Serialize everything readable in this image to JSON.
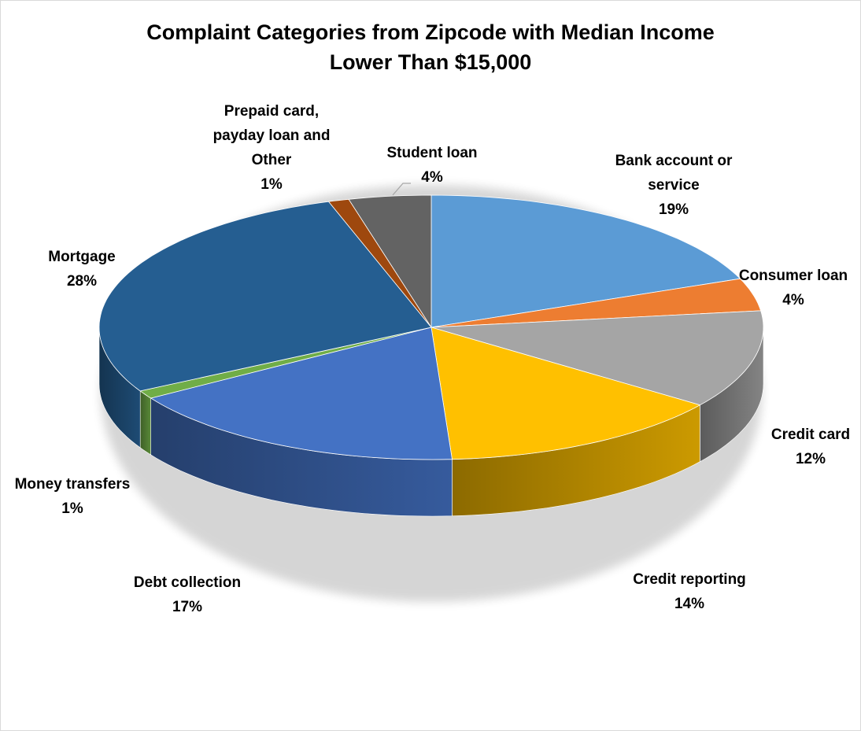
{
  "chart_data": {
    "type": "pie",
    "variant": "3d",
    "title_lines": [
      "Complaint Categories from Zipcode with Median Income",
      "Lower Than $15,000"
    ],
    "slices": [
      {
        "name": "Bank account or service",
        "value": 19,
        "pct_label": "19%",
        "label_lines": [
          "Bank account  or",
          "service"
        ],
        "color": "#5B9BD5"
      },
      {
        "name": "Consumer loan",
        "value": 4,
        "pct_label": "4%",
        "label_lines": [
          "Consumer loan"
        ],
        "color": "#ED7D31"
      },
      {
        "name": "Credit card",
        "value": 12,
        "pct_label": "12%",
        "label_lines": [
          "Credit card"
        ],
        "color": "#A5A5A5"
      },
      {
        "name": "Credit reporting",
        "value": 14,
        "pct_label": "14%",
        "label_lines": [
          "Credit reporting"
        ],
        "color": "#FFC000"
      },
      {
        "name": "Debt collection",
        "value": 17,
        "pct_label": "17%",
        "label_lines": [
          "Debt collection"
        ],
        "color": "#4472C4"
      },
      {
        "name": "Money transfers",
        "value": 1,
        "pct_label": "1%",
        "label_lines": [
          "Money transfers"
        ],
        "color": "#70AD47"
      },
      {
        "name": "Mortgage",
        "value": 28,
        "pct_label": "28%",
        "label_lines": [
          "Mortgage"
        ],
        "color": "#255E91"
      },
      {
        "name": "Prepaid card, payday loan and Other",
        "value": 1,
        "pct_label": "1%",
        "label_lines": [
          "Prepaid card,",
          "payday loan and",
          "Other"
        ],
        "color": "#9E480E"
      },
      {
        "name": "Student loan",
        "value": 4,
        "pct_label": "4%",
        "label_lines": [
          "Student loan"
        ],
        "color": "#636363"
      }
    ],
    "legend": "none",
    "data_labels": "outside"
  }
}
